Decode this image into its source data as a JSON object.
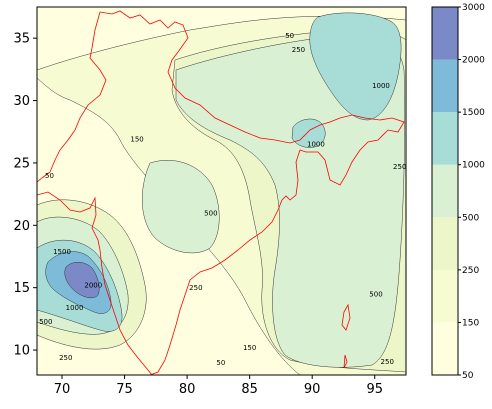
{
  "chart_data": {
    "type": "contour",
    "title": "",
    "xlabel": "",
    "ylabel": "",
    "xlim": [
      68,
      97.5
    ],
    "ylim": [
      8,
      37.5
    ],
    "x_ticks": [
      70,
      75,
      80,
      85,
      90,
      95
    ],
    "y_ticks": [
      10,
      15,
      20,
      25,
      30,
      35
    ],
    "colorbar": {
      "levels": [
        50,
        150,
        250,
        500,
        1000,
        1500,
        2000,
        3000
      ],
      "tick_labels": [
        "50",
        "150",
        "250",
        "500",
        "1000",
        "1500",
        "2000",
        "3000"
      ],
      "colors": [
        "#ffffe0",
        "#f7fbd2",
        "#ecf6c8",
        "#d9f0d3",
        "#a8ddd7",
        "#7dbbd9",
        "#7b89c6"
      ]
    },
    "contour_labels": [
      {
        "text": "50",
        "lon": 88.2,
        "lat": 35.0
      },
      {
        "text": "250",
        "lon": 88.9,
        "lat": 33.9
      },
      {
        "text": "1000",
        "lon": 95.5,
        "lat": 31.0
      },
      {
        "text": "150",
        "lon": 76.0,
        "lat": 26.7
      },
      {
        "text": "1000",
        "lon": 90.3,
        "lat": 26.3
      },
      {
        "text": "50",
        "lon": 69.0,
        "lat": 23.8
      },
      {
        "text": "250",
        "lon": 97.0,
        "lat": 24.5
      },
      {
        "text": "500",
        "lon": 81.9,
        "lat": 20.8
      },
      {
        "text": "1500",
        "lon": 70.0,
        "lat": 17.7
      },
      {
        "text": "2000",
        "lon": 72.5,
        "lat": 15.0
      },
      {
        "text": "1000",
        "lon": 71.0,
        "lat": 13.2
      },
      {
        "text": "500",
        "lon": 68.7,
        "lat": 12.1
      },
      {
        "text": "250",
        "lon": 80.7,
        "lat": 14.8
      },
      {
        "text": "500",
        "lon": 95.1,
        "lat": 14.3
      },
      {
        "text": "250",
        "lon": 70.3,
        "lat": 9.2
      },
      {
        "text": "150",
        "lon": 85.0,
        "lat": 10.0
      },
      {
        "text": "50",
        "lon": 82.7,
        "lat": 8.8
      },
      {
        "text": "250",
        "lon": 96.0,
        "lat": 8.9
      }
    ],
    "boundary_color": "#ff0000",
    "grid": false,
    "legend": "colorbar-right"
  }
}
